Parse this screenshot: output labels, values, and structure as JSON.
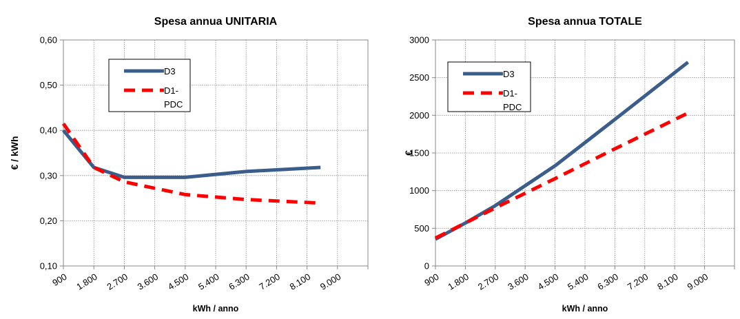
{
  "chart_data": [
    {
      "type": "line",
      "title": "Spesa annua UNITARIA",
      "xlabel": "kWh / anno",
      "ylabel": "€ / kWh",
      "x_ticks": [
        "900",
        "1.800",
        "2.700",
        "3.600",
        "4.500",
        "5.400",
        "6.300",
        "7.200",
        "8.100",
        "9.000"
      ],
      "ylim": [
        0.1,
        0.6
      ],
      "y_ticks": [
        "0,10",
        "0,20",
        "0,30",
        "0,40",
        "0,50",
        "0,60"
      ],
      "grid": true,
      "legend": "top-left",
      "series": [
        {
          "name": "D3",
          "color": "#3b5d8c",
          "style": "solid",
          "x": [
            900,
            1800,
            2700,
            4500,
            6300,
            8500
          ],
          "values": [
            0.4,
            0.318,
            0.296,
            0.296,
            0.309,
            0.318
          ]
        },
        {
          "name": "D1-PDC",
          "color": "#ff0000",
          "style": "dashed",
          "x": [
            900,
            1800,
            2700,
            4500,
            6300,
            8500
          ],
          "values": [
            0.415,
            0.318,
            0.286,
            0.258,
            0.247,
            0.239
          ]
        }
      ]
    },
    {
      "type": "line",
      "title": "Spesa annua TOTALE",
      "xlabel": "kWh / anno",
      "ylabel": "€",
      "x_ticks": [
        "900",
        "1.800",
        "2.700",
        "3.600",
        "4.500",
        "5.400",
        "6.300",
        "7.200",
        "8.100",
        "9.000"
      ],
      "ylim": [
        0,
        3000
      ],
      "y_ticks": [
        "0",
        "500",
        "1000",
        "1500",
        "2000",
        "2500",
        "3000"
      ],
      "grid": true,
      "legend": "top-left",
      "series": [
        {
          "name": "D3",
          "color": "#3b5d8c",
          "style": "solid",
          "x": [
            900,
            1800,
            2700,
            4500,
            6300,
            8500
          ],
          "values": [
            355,
            570,
            800,
            1330,
            1945,
            2705
          ]
        },
        {
          "name": "D1-PDC",
          "color": "#ff0000",
          "style": "dashed",
          "x": [
            900,
            1800,
            2700,
            4500,
            6300,
            8500
          ],
          "values": [
            370,
            570,
            770,
            1160,
            1555,
            2030
          ]
        }
      ]
    }
  ]
}
